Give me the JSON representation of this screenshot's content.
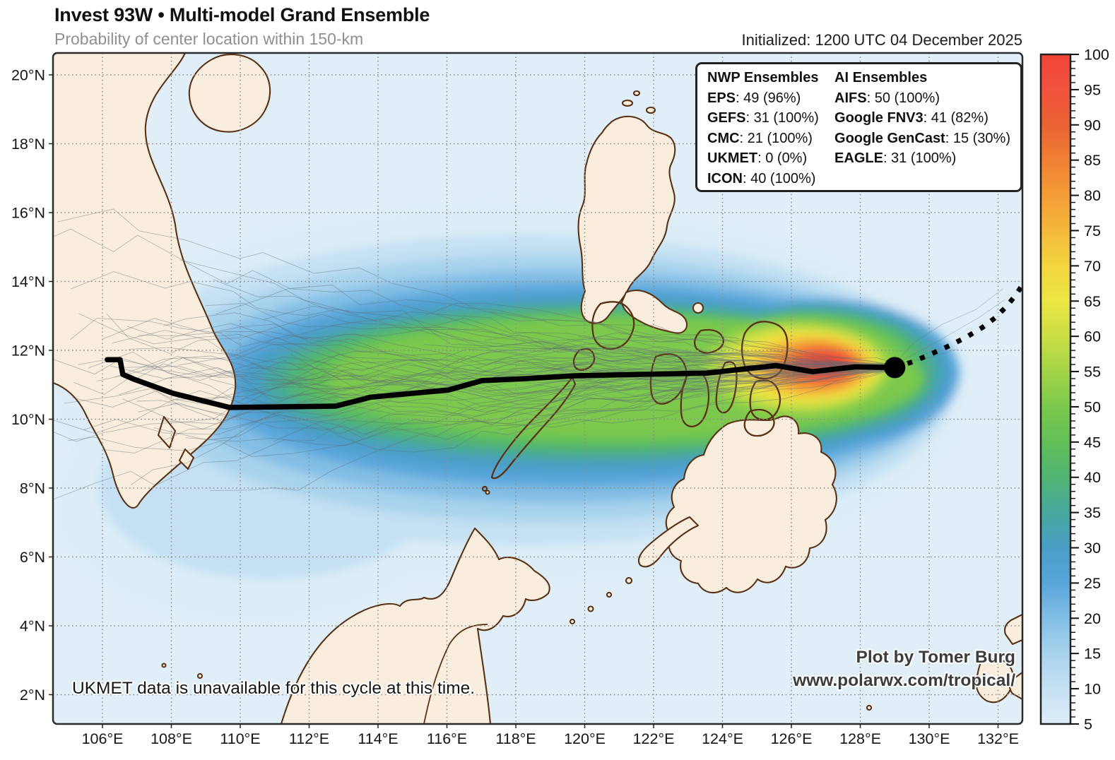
{
  "header": {
    "title": "Invest 93W • Multi-model Grand Ensemble",
    "subtitle": "Probability of center location within 150-km",
    "initialized": "Initialized: 1200 UTC 04 December 2025"
  },
  "legend": {
    "columns": [
      {
        "heading": "NWP Ensembles",
        "items": [
          {
            "label": "EPS",
            "value": "49 (96%)"
          },
          {
            "label": "GEFS",
            "value": "31 (100%)"
          },
          {
            "label": "CMC",
            "value": "21 (100%)"
          },
          {
            "label": "UKMET",
            "value": "0 (0%)"
          },
          {
            "label": "ICON",
            "value": "40 (100%)"
          }
        ]
      },
      {
        "heading": "AI Ensembles",
        "items": [
          {
            "label": "AIFS",
            "value": "50 (100%)"
          },
          {
            "label": "Google FNV3",
            "value": "41 (82%)"
          },
          {
            "label": "Google GenCast",
            "value": "15 (30%)"
          },
          {
            "label": "EAGLE",
            "value": "31 (100%)"
          }
        ]
      }
    ]
  },
  "notes": {
    "ukmet": "UKMET data is unavailable for this cycle at this time."
  },
  "credits": {
    "line1": "Plot by Tomer Burg",
    "line2": "www.polarwx.com/tropical/"
  },
  "axes": {
    "x_labels": [
      "106°E",
      "108°E",
      "110°E",
      "112°E",
      "114°E",
      "116°E",
      "118°E",
      "120°E",
      "122°E",
      "124°E",
      "126°E",
      "128°E",
      "130°E",
      "132°E"
    ],
    "x_lons": [
      106,
      108,
      110,
      112,
      114,
      116,
      118,
      120,
      122,
      124,
      126,
      128,
      130,
      132
    ],
    "y_labels": [
      "20°N",
      "18°N",
      "16°N",
      "14°N",
      "12°N",
      "10°N",
      "8°N",
      "6°N",
      "4°N",
      "2°N"
    ],
    "y_lats": [
      20,
      18,
      16,
      14,
      12,
      10,
      8,
      6,
      4,
      2
    ]
  },
  "colorbar": {
    "levels": [
      5,
      10,
      15,
      20,
      25,
      30,
      35,
      40,
      45,
      50,
      55,
      60,
      65,
      70,
      75,
      80,
      85,
      90,
      95,
      100
    ],
    "palette": {
      "5": "#dcedf8",
      "10": "#c5e1f3",
      "15": "#a9d3ed",
      "20": "#82bee5",
      "25": "#58a5da",
      "30": "#4a9ec6",
      "35": "#46a89d",
      "40": "#51b473",
      "45": "#61bf58",
      "50": "#7cc94d",
      "55": "#a2d447",
      "60": "#cbdf45",
      "65": "#ebe643",
      "70": "#f2d53f",
      "75": "#f4b93b",
      "80": "#f49d37",
      "85": "#f08033",
      "90": "#eb6234",
      "95": "#f1533d",
      "100": "#ef4438"
    }
  },
  "map_colors": {
    "ocean": "#dfeef7",
    "land_fill": "#f9eedd",
    "coast_stroke": "#5a3114",
    "grid": "#8f8f8f",
    "track": "#000000",
    "spaghetti": "#5f6b75",
    "frame": "#2b2b2b"
  },
  "chart_data": {
    "type": "heatmap",
    "subtype": "tropical-cyclone-ensemble-probability-map",
    "title": "Invest 93W • Multi-model Grand Ensemble",
    "subtitle": "Probability of center location within 150-km",
    "initialized": "1200 UTC 04 December 2025",
    "map_extent": {
      "lon": [
        104.6,
        132.7
      ],
      "lat": [
        1.2,
        20.6
      ]
    },
    "grid_interval_deg": 2,
    "probability_colorbar": {
      "min": 5,
      "max": 100,
      "tick_step": 5,
      "units": "%"
    },
    "best_track_lonlat": [
      [
        106.14,
        11.73
      ],
      [
        106.51,
        11.73
      ],
      [
        106.59,
        11.3
      ],
      [
        106.92,
        11.16
      ],
      [
        108.05,
        10.75
      ],
      [
        109.69,
        10.34
      ],
      [
        112.77,
        10.38
      ],
      [
        113.79,
        10.64
      ],
      [
        116.05,
        10.85
      ],
      [
        117.02,
        11.12
      ],
      [
        118.31,
        11.18
      ],
      [
        119.64,
        11.26
      ],
      [
        121.49,
        11.3
      ],
      [
        123.54,
        11.34
      ],
      [
        125.55,
        11.56
      ],
      [
        126.62,
        11.38
      ],
      [
        127.85,
        11.52
      ],
      [
        129.0,
        11.5
      ]
    ],
    "forecast_track_lonlat": [
      [
        129.0,
        11.5
      ],
      [
        129.53,
        11.67
      ],
      [
        130.07,
        11.9
      ],
      [
        130.6,
        12.14
      ],
      [
        131.09,
        12.39
      ],
      [
        131.54,
        12.66
      ],
      [
        131.91,
        12.94
      ],
      [
        132.24,
        13.27
      ],
      [
        132.51,
        13.6
      ],
      [
        132.7,
        13.89
      ]
    ],
    "current_position_lonlat": [
      129.0,
      11.5
    ],
    "max_probability_center_lonlat": [
      127.0,
      11.6
    ],
    "ensemble_members": {
      "EPS": 49,
      "GEFS": 31,
      "CMC": 21,
      "UKMET": 0,
      "ICON": 40,
      "AIFS": 50,
      "Google FNV3": 41,
      "Google GenCast": 15,
      "EAGLE": 31
    }
  }
}
